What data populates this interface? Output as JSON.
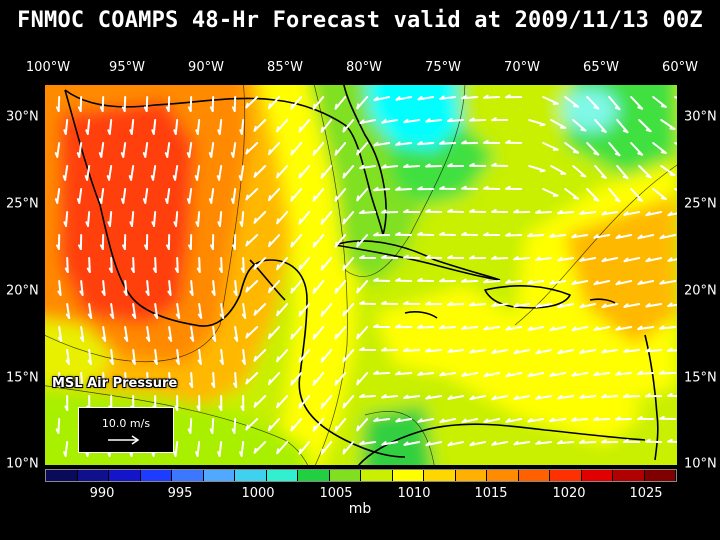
{
  "title": "FNMOC COAMPS 48-Hr Forecast valid at 2009/11/13 00Z",
  "map_label": "MSL Air Pressure",
  "wind_legend": {
    "label": "10.0 m/s"
  },
  "longitude_labels": [
    "100°W",
    "95°W",
    "90°W",
    "85°W",
    "80°W",
    "75°W",
    "70°W",
    "65°W",
    "60°W"
  ],
  "latitude_labels": [
    "30°N",
    "25°N",
    "20°N",
    "15°N",
    "10°N"
  ],
  "colorbar": {
    "colors": [
      "#0a0a5a",
      "#10108c",
      "#1414c8",
      "#1e3cff",
      "#3c78ff",
      "#50a8ff",
      "#40d0f0",
      "#30f0d0",
      "#20d040",
      "#80e020",
      "#c8f000",
      "#ffff00",
      "#ffd700",
      "#ffb000",
      "#ff8c00",
      "#ff6000",
      "#ff3000",
      "#e00000",
      "#b00000",
      "#800000"
    ],
    "tick_labels": [
      "990",
      "995",
      "1000",
      "1005",
      "1010",
      "1015",
      "1020",
      "1025"
    ],
    "units": "mb"
  },
  "field_colors": {
    "orange_red": "#ff4010",
    "orange": "#ff8a00",
    "gold": "#ffb800",
    "yellow": "#ffff00",
    "light_yellow": "#e8f000",
    "lime": "#a8f000",
    "green": "#40e040",
    "cyan": "#00ffff",
    "light_cyan": "#80f8e8"
  }
}
